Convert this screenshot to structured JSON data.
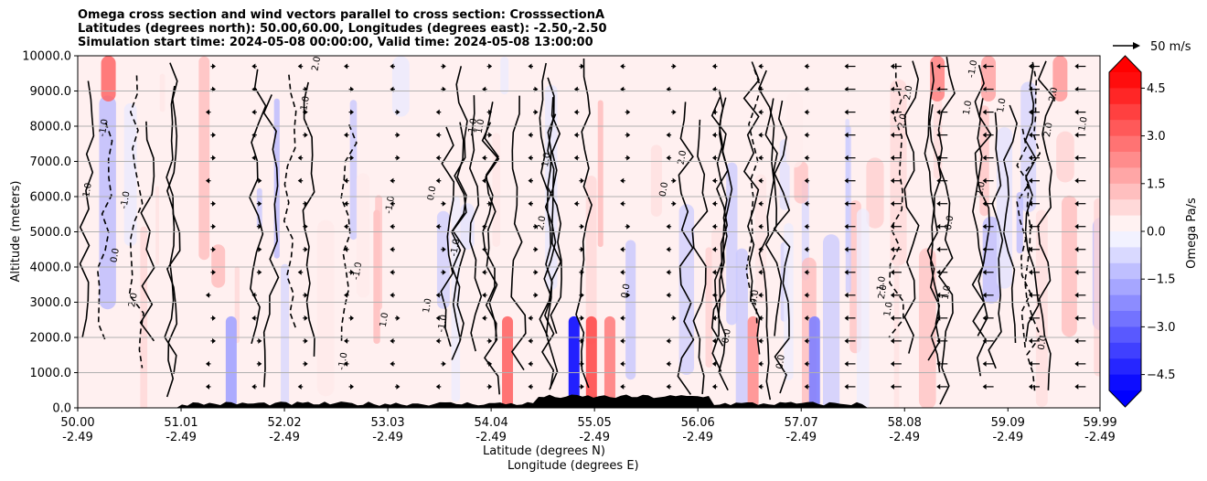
{
  "header": {
    "title_line1": "Omega cross section and wind vectors parallel to cross section: CrosssectionA",
    "title_line2": "Latitudes (degrees north): 50.00,60.00, Longitudes (degrees east): -2.50,-2.50",
    "title_line3": "Simulation start time: 2024-05-08 00:00:00, Valid time: 2024-05-08 13:00:00"
  },
  "legend": {
    "quiver_label": "50 m/s"
  },
  "colorbar": {
    "label": "Omega Pa/s",
    "ticks": [
      "4.5",
      "3.0",
      "1.5",
      "0.0",
      "−1.5",
      "−3.0",
      "−4.5"
    ],
    "range": [
      -5.0,
      5.0
    ],
    "negative_color": "#0000ff",
    "positive_color": "#ff0000"
  },
  "chart_data": {
    "type": "heatmap",
    "title": "Omega cross section and wind vectors parallel to cross section: CrosssectionA",
    "ylabel": "Altitude (meters)",
    "xlabel_line1": "Latitude (degrees N)",
    "xlabel_line2": "Longitude (degrees E)",
    "ylim": [
      0,
      10000
    ],
    "xlim": [
      50.0,
      59.99
    ],
    "y_ticks": [
      "0.0",
      "1000.0",
      "2000.0",
      "3000.0",
      "4000.0",
      "5000.0",
      "6000.0",
      "7000.0",
      "8000.0",
      "9000.0",
      "10000.0"
    ],
    "x_ticks": [
      {
        "lat": "50.00",
        "lon": "-2.49"
      },
      {
        "lat": "51.01",
        "lon": "-2.49"
      },
      {
        "lat": "52.02",
        "lon": "-2.49"
      },
      {
        "lat": "53.03",
        "lon": "-2.49"
      },
      {
        "lat": "54.04",
        "lon": "-2.49"
      },
      {
        "lat": "55.05",
        "lon": "-2.49"
      },
      {
        "lat": "56.06",
        "lon": "-2.49"
      },
      {
        "lat": "57.07",
        "lon": "-2.49"
      },
      {
        "lat": "58.08",
        "lon": "-2.49"
      },
      {
        "lat": "59.09",
        "lon": "-2.49"
      },
      {
        "lat": "59.99",
        "lon": "-2.49"
      }
    ],
    "field": "Omega (Pa/s)",
    "contour_labels": [
      "0.0",
      "1.0",
      "-1.0",
      "2.0"
    ]
  }
}
